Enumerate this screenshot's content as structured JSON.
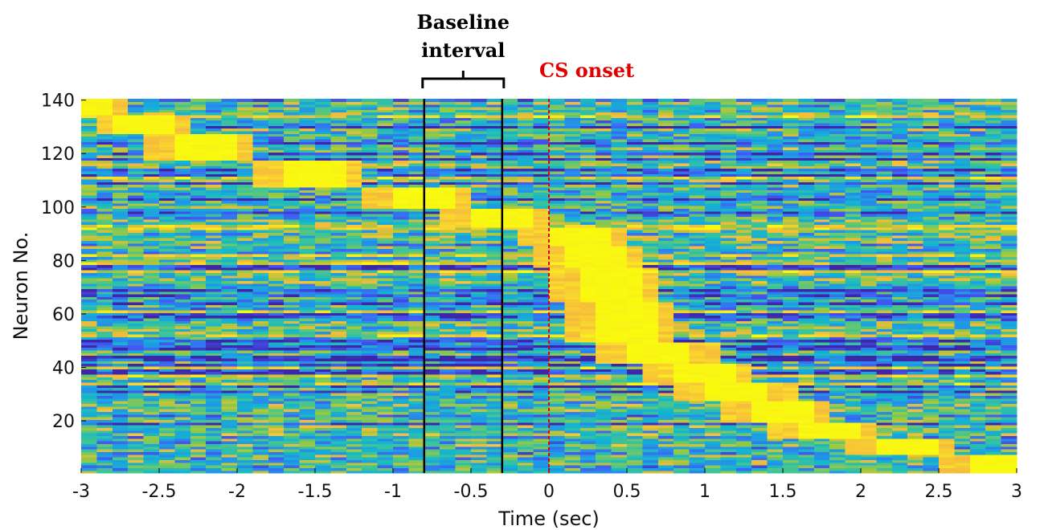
{
  "chart_data": {
    "type": "heatmap",
    "title": "",
    "xlabel": "Time (sec)",
    "ylabel": "Neuron No.",
    "xlim": [
      -3,
      3
    ],
    "ylim": [
      1,
      140
    ],
    "x_ticks": [
      -3,
      -2.5,
      -2,
      -1.5,
      -1,
      -0.5,
      0,
      0.5,
      1,
      1.5,
      2,
      2.5,
      3
    ],
    "x_tick_labels": [
      "-3",
      "-2.5",
      "-2",
      "-1.5",
      "-1",
      "-0.5",
      "0",
      "0.5",
      "1",
      "1.5",
      "2",
      "2.5",
      "3"
    ],
    "y_ticks": [
      20,
      40,
      60,
      80,
      100,
      120,
      140
    ],
    "y_tick_labels": [
      "20",
      "40",
      "60",
      "80",
      "100",
      "120",
      "140"
    ],
    "time_bin_sec": 0.1,
    "n_neurons": 140,
    "colormap": [
      "#3e26a8",
      "#4358f5",
      "#2394e8",
      "#13b6ce",
      "#3fc496",
      "#9fc93c",
      "#f5ba3c",
      "#f9d72d",
      "#f9fb0e"
    ],
    "grid": false,
    "legend": "none",
    "peak_sequence": [
      {
        "neurons": [
          135,
          140
        ],
        "time": -3.0
      },
      {
        "neurons": [
          128,
          134
        ],
        "time": -2.6
      },
      {
        "neurons": [
          118,
          127
        ],
        "time": -2.2
      },
      {
        "neurons": [
          108,
          117
        ],
        "time": -1.5
      },
      {
        "neurons": [
          100,
          107
        ],
        "time": -0.8
      },
      {
        "neurons": [
          93,
          99
        ],
        "time": -0.3
      },
      {
        "neurons": [
          86,
          92
        ],
        "time": 0.2
      },
      {
        "neurons": [
          78,
          85
        ],
        "time": 0.3
      },
      {
        "neurons": [
          65,
          77
        ],
        "time": 0.4
      },
      {
        "neurons": [
          50,
          64
        ],
        "time": 0.5
      },
      {
        "neurons": [
          42,
          49
        ],
        "time": 0.7
      },
      {
        "neurons": [
          35,
          41
        ],
        "time": 1.0
      },
      {
        "neurons": [
          28,
          34
        ],
        "time": 1.2
      },
      {
        "neurons": [
          20,
          27
        ],
        "time": 1.5
      },
      {
        "neurons": [
          14,
          19
        ],
        "time": 1.8
      },
      {
        "neurons": [
          8,
          13
        ],
        "time": 2.3
      },
      {
        "neurons": [
          1,
          7
        ],
        "time": 2.9
      }
    ],
    "annotations": [
      {
        "type": "bracket",
        "lines": [
          "Baseline",
          "interval"
        ],
        "x_start": -0.8,
        "x_end": -0.3,
        "color": "#000000"
      },
      {
        "type": "vline",
        "label": "CS onset",
        "x": 0,
        "color": "#e00000",
        "style": "dashed"
      }
    ]
  }
}
